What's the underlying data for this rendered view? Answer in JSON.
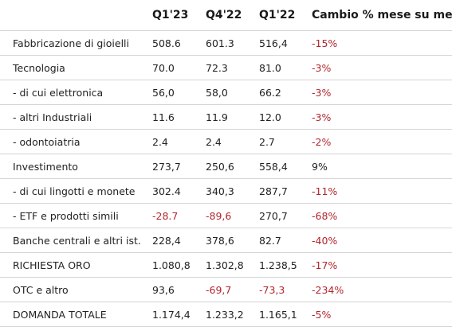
{
  "header": {
    "label": "",
    "col1": "Q1'23",
    "col2": "Q4'22",
    "col3": "Q1'22",
    "col4": "Cambio % mese su mese"
  },
  "colors": {
    "negative": "#b3262e",
    "text": "#222222",
    "border": "#d5d5d5"
  },
  "rows": [
    {
      "label": "Fabbricazione di gioielli",
      "q1_23": "508.6",
      "q4_22": "601.3",
      "q1_22": "516,4",
      "change": "-15%"
    },
    {
      "label": "Tecnologia",
      "q1_23": "70.0",
      "q4_22": "72.3",
      "q1_22": "81.0",
      "change": "-3%"
    },
    {
      "label": "- di cui elettronica",
      "q1_23": "56,0",
      "q4_22": "58,0",
      "q1_22": "66.2",
      "change": "-3%"
    },
    {
      "label": "- altri Industriali",
      "q1_23": "11.6",
      "q4_22": "11.9",
      "q1_22": "12.0",
      "change": "-3%"
    },
    {
      "label": "- odontoiatria",
      "q1_23": "2.4",
      "q4_22": "2.4",
      "q1_22": "2.7",
      "change": "-2%"
    },
    {
      "label": "Investimento",
      "q1_23": "273,7",
      "q4_22": "250,6",
      "q1_22": "558,4",
      "change": "9%"
    },
    {
      "label": "- di cui lingotti e monete",
      "q1_23": "302.4",
      "q4_22": "340,3",
      "q1_22": "287,7",
      "change": "-11%"
    },
    {
      "label": "- ETF e prodotti simili",
      "q1_23": "-28.7",
      "q4_22": "-89,6",
      "q1_22": "270,7",
      "change": "-68%"
    },
    {
      "label": "Banche centrali e altri ist.",
      "q1_23": "228,4",
      "q4_22": "378,6",
      "q1_22": "82.7",
      "change": "-40%"
    },
    {
      "label": "RICHIESTA ORO",
      "q1_23": "1.080,8",
      "q4_22": "1.302,8",
      "q1_22": "1.238,5",
      "change": "-17%"
    },
    {
      "label": "OTC e altro",
      "q1_23": "93,6",
      "q4_22": "-69,7",
      "q1_22": "-73,3",
      "change": "-234%"
    },
    {
      "label": "DOMANDA TOTALE",
      "q1_23": "1.174,4",
      "q4_22": "1.233,2",
      "q1_22": "1.165,1",
      "change": "-5%"
    }
  ]
}
